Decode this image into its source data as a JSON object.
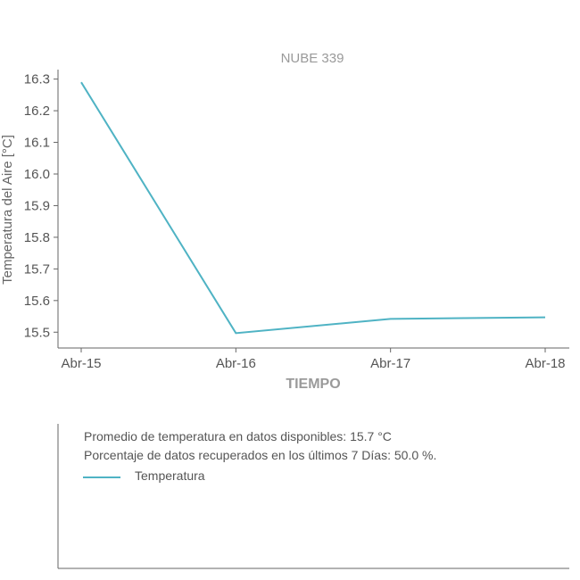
{
  "chart_data": {
    "type": "line",
    "title": "NUBE 339",
    "xlabel": "TIEMPO",
    "ylabel": "Temperatura del Aire [°C]",
    "categories": [
      "Abr-15",
      "Abr-16",
      "Abr-17",
      "Abr-18"
    ],
    "yticks": [
      "15.5",
      "15.6",
      "15.7",
      "15.8",
      "15.9",
      "16.0",
      "16.1",
      "16.2",
      "16.3"
    ],
    "ylim": [
      15.45,
      16.33
    ],
    "series": [
      {
        "name": "Temperatura",
        "color": "#4fb3c4",
        "values": [
          16.29,
          15.497,
          15.542,
          15.547
        ]
      }
    ],
    "grid": false
  },
  "info": {
    "avg_text": "Promedio de temperatura en datos disponibles: 15.7 °C",
    "pct_text": "Porcentaje de datos recuperados en los últimos 7 Días: 50.0 %.",
    "legend_label": "Temperatura"
  }
}
